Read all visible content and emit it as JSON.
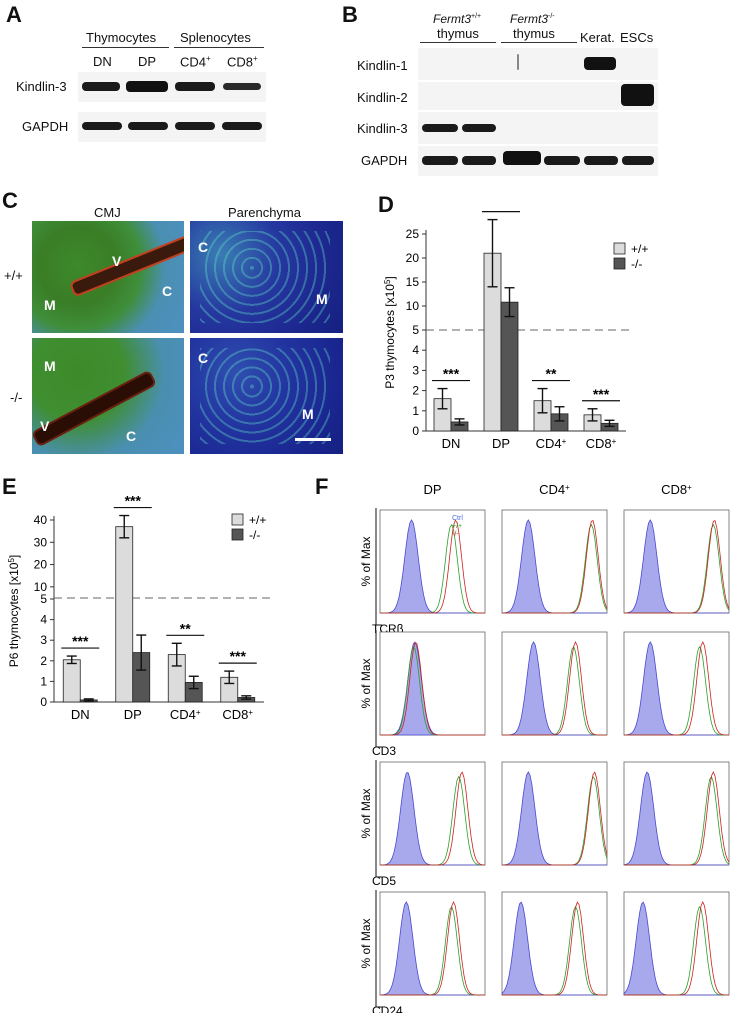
{
  "panels": {
    "A": "A",
    "B": "B",
    "C": "C",
    "D": "D",
    "E": "E",
    "F": "F"
  },
  "panelA": {
    "group1": "Thymocytes",
    "group2": "Splenocytes",
    "lanes": [
      "DN",
      "DP",
      "CD4",
      "CD8"
    ],
    "lane_sup": [
      "",
      "",
      "+",
      "+"
    ],
    "rows": [
      "Kindlin-3",
      "GAPDH"
    ]
  },
  "panelB": {
    "group1_gene": "Fermt3",
    "group1_sup": "+/+",
    "group1_tissue": "thymus",
    "group2_gene": "Fermt3",
    "group2_sup": "-/-",
    "group2_tissue": "thymus",
    "col3": "Kerat.",
    "col4": "ESCs",
    "rows": [
      "Kindlin-1",
      "Kindlin-2",
      "Kindlin-3",
      "GAPDH"
    ]
  },
  "panelC": {
    "col1": "CMJ",
    "col2": "Parenchyma",
    "row1": "+/+",
    "row2": "-/-",
    "labels": {
      "a1": "V",
      "a2": "M",
      "a3": "C",
      "b1": "C",
      "b2": "M",
      "c1": "M",
      "c2": "V",
      "c3": "C",
      "d1": "C",
      "d2": "M"
    }
  },
  "chart_data": [
    {
      "type": "bar",
      "panel": "D",
      "ylabel": "P3 thymocytes [x10",
      "ylabel_sup": "5",
      "ylabel_end": "]",
      "categories": [
        "DN",
        "DP",
        "CD4",
        "CD8"
      ],
      "category_sup": [
        "",
        "",
        "+",
        "+"
      ],
      "series": [
        {
          "name": "+/+",
          "values": [
            1.6,
            21,
            1.5,
            0.8
          ],
          "errors": [
            0.5,
            7,
            0.6,
            0.3
          ],
          "color": "#dcdcdc"
        },
        {
          "name": "-/-",
          "values": [
            0.45,
            10.8,
            0.85,
            0.38
          ],
          "errors": [
            0.15,
            3,
            0.35,
            0.15
          ],
          "color": "#555555"
        }
      ],
      "significance": [
        "***",
        "***",
        "**",
        "***"
      ],
      "yticks_low": [
        0,
        1,
        2,
        3,
        4,
        5
      ],
      "yticks_high": [
        10,
        15,
        20,
        25
      ],
      "broken_axis_at": 5
    },
    {
      "type": "bar",
      "panel": "E",
      "ylabel": "P6 thymocytes [x10",
      "ylabel_sup": "5",
      "ylabel_end": "]",
      "categories": [
        "DN",
        "DP",
        "CD4",
        "CD8"
      ],
      "category_sup": [
        "",
        "",
        "+",
        "+"
      ],
      "series": [
        {
          "name": "+/+",
          "values": [
            2.05,
            37,
            2.3,
            1.2
          ],
          "errors": [
            0.18,
            5,
            0.55,
            0.3
          ],
          "color": "#dcdcdc"
        },
        {
          "name": "-/-",
          "values": [
            0.1,
            2.4,
            0.95,
            0.22
          ],
          "errors": [
            0.05,
            0.85,
            0.3,
            0.08
          ],
          "color": "#555555"
        }
      ],
      "significance": [
        "***",
        "***",
        "**",
        "***"
      ],
      "yticks_low": [
        0,
        1,
        2,
        3,
        4,
        5
      ],
      "yticks_high": [
        10,
        20,
        30,
        40
      ],
      "broken_axis_at": 5
    }
  ],
  "panelF": {
    "columns": [
      "DP",
      "CD4",
      "CD8"
    ],
    "column_sup": [
      "",
      "+",
      "+"
    ],
    "ylabel": "% of Max",
    "rows": [
      "TCRβ",
      "CD3",
      "CD5",
      "CD24"
    ],
    "legend": [
      {
        "name": "Ctrl",
        "color": "#4a6fe0"
      },
      {
        "name": "+/+",
        "color": "#2aa02a"
      },
      {
        "name": "-/-",
        "color": "#d02020"
      }
    ]
  }
}
